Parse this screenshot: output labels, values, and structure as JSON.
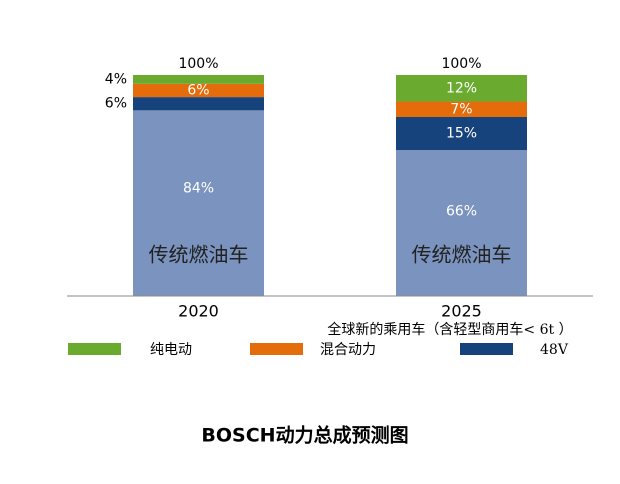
{
  "chart_data": {
    "type": "stacked-bar",
    "title": "BOSCH动力总成预测图",
    "subtitle": "全球新的乘用车（含轻型商用车< 6t ）",
    "categories": [
      "2020",
      "2025"
    ],
    "total_labels": [
      "100%",
      "100%"
    ],
    "ylim": [
      0,
      100
    ],
    "series": [
      {
        "name": "传统燃油车",
        "color": "#7a93bf",
        "values": [
          84,
          66
        ],
        "value_labels": [
          "84%",
          "66%"
        ]
      },
      {
        "name": "48V",
        "color": "#17437d",
        "values": [
          6,
          15
        ],
        "value_labels": [
          "6%",
          "15%"
        ]
      },
      {
        "name": "混合动力",
        "color": "#e46c0a",
        "values": [
          6,
          7
        ],
        "value_labels": [
          "6%",
          "7%"
        ]
      },
      {
        "name": "纯电动",
        "color": "#6aab2f",
        "values": [
          4,
          12
        ],
        "value_labels": [
          "4%",
          "12%"
        ]
      }
    ]
  }
}
